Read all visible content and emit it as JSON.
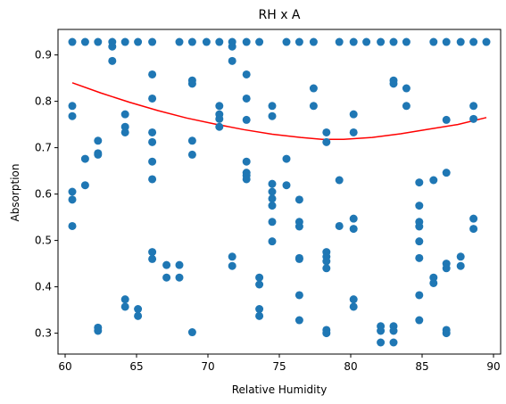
{
  "chart_data": {
    "type": "scatter",
    "title": "RH x A",
    "xlabel": "Relative Humidity",
    "ylabel": "Absorption",
    "xlim": [
      59.5,
      90.5
    ],
    "ylim": [
      0.255,
      0.955
    ],
    "xticks": [
      60,
      65,
      70,
      75,
      80,
      85,
      90
    ],
    "yticks": [
      0.3,
      0.4,
      0.5,
      0.6,
      0.7,
      0.8,
      0.9
    ],
    "grid": false,
    "colors": {
      "points": "#1f77b4",
      "fit": "#ff0000"
    },
    "series": [
      {
        "type": "scatter",
        "points": [
          [
            60.5,
            0.928
          ],
          [
            61.4,
            0.928
          ],
          [
            62.3,
            0.928
          ],
          [
            63.3,
            0.928
          ],
          [
            64.2,
            0.928
          ],
          [
            65.1,
            0.928
          ],
          [
            66.1,
            0.928
          ],
          [
            68.0,
            0.928
          ],
          [
            68.9,
            0.928
          ],
          [
            69.9,
            0.928
          ],
          [
            70.8,
            0.928
          ],
          [
            71.7,
            0.928
          ],
          [
            72.7,
            0.928
          ],
          [
            73.6,
            0.928
          ],
          [
            75.5,
            0.928
          ],
          [
            76.4,
            0.928
          ],
          [
            77.4,
            0.928
          ],
          [
            79.2,
            0.928
          ],
          [
            80.2,
            0.928
          ],
          [
            81.1,
            0.928
          ],
          [
            82.1,
            0.928
          ],
          [
            83.0,
            0.928
          ],
          [
            83.9,
            0.928
          ],
          [
            85.8,
            0.928
          ],
          [
            86.7,
            0.928
          ],
          [
            87.7,
            0.928
          ],
          [
            88.6,
            0.928
          ],
          [
            89.5,
            0.928
          ],
          [
            63.3,
            0.918
          ],
          [
            71.7,
            0.918
          ],
          [
            63.3,
            0.887
          ],
          [
            71.7,
            0.887
          ],
          [
            66.1,
            0.858
          ],
          [
            72.7,
            0.858
          ],
          [
            68.9,
            0.845
          ],
          [
            68.9,
            0.838
          ],
          [
            83.0,
            0.845
          ],
          [
            83.0,
            0.838
          ],
          [
            77.4,
            0.828
          ],
          [
            83.9,
            0.828
          ],
          [
            66.1,
            0.806
          ],
          [
            72.7,
            0.806
          ],
          [
            60.5,
            0.79
          ],
          [
            70.8,
            0.79
          ],
          [
            74.5,
            0.79
          ],
          [
            77.4,
            0.79
          ],
          [
            83.9,
            0.79
          ],
          [
            88.6,
            0.79
          ],
          [
            60.5,
            0.768
          ],
          [
            64.2,
            0.772
          ],
          [
            70.8,
            0.772
          ],
          [
            70.8,
            0.762
          ],
          [
            72.7,
            0.76
          ],
          [
            74.5,
            0.768
          ],
          [
            80.2,
            0.772
          ],
          [
            86.7,
            0.76
          ],
          [
            88.6,
            0.762
          ],
          [
            64.2,
            0.745
          ],
          [
            64.2,
            0.733
          ],
          [
            70.8,
            0.745
          ],
          [
            66.1,
            0.733
          ],
          [
            78.3,
            0.733
          ],
          [
            80.2,
            0.733
          ],
          [
            62.3,
            0.715
          ],
          [
            66.1,
            0.712
          ],
          [
            68.9,
            0.715
          ],
          [
            78.3,
            0.712
          ],
          [
            62.3,
            0.688
          ],
          [
            62.3,
            0.685
          ],
          [
            68.9,
            0.685
          ],
          [
            61.4,
            0.676
          ],
          [
            66.1,
            0.67
          ],
          [
            72.7,
            0.67
          ],
          [
            75.5,
            0.676
          ],
          [
            72.7,
            0.646
          ],
          [
            72.7,
            0.64
          ],
          [
            72.7,
            0.632
          ],
          [
            86.7,
            0.646
          ],
          [
            66.1,
            0.632
          ],
          [
            79.2,
            0.63
          ],
          [
            85.8,
            0.63
          ],
          [
            84.8,
            0.625
          ],
          [
            61.4,
            0.619
          ],
          [
            74.5,
            0.622
          ],
          [
            75.5,
            0.619
          ],
          [
            60.5,
            0.605
          ],
          [
            74.5,
            0.605
          ],
          [
            60.5,
            0.588
          ],
          [
            74.5,
            0.59
          ],
          [
            76.4,
            0.588
          ],
          [
            74.5,
            0.575
          ],
          [
            84.8,
            0.575
          ],
          [
            74.5,
            0.54
          ],
          [
            76.4,
            0.54
          ],
          [
            76.4,
            0.53
          ],
          [
            80.2,
            0.547
          ],
          [
            80.2,
            0.525
          ],
          [
            84.8,
            0.54
          ],
          [
            84.8,
            0.53
          ],
          [
            88.6,
            0.547
          ],
          [
            88.6,
            0.525
          ],
          [
            60.5,
            0.531
          ],
          [
            79.2,
            0.531
          ],
          [
            74.5,
            0.498
          ],
          [
            84.8,
            0.498
          ],
          [
            66.1,
            0.475
          ],
          [
            66.1,
            0.46
          ],
          [
            71.7,
            0.465
          ],
          [
            71.7,
            0.445
          ],
          [
            67.1,
            0.447
          ],
          [
            68.0,
            0.447
          ],
          [
            76.4,
            0.462
          ],
          [
            76.4,
            0.46
          ],
          [
            78.3,
            0.475
          ],
          [
            78.3,
            0.465
          ],
          [
            78.3,
            0.455
          ],
          [
            78.3,
            0.44
          ],
          [
            84.8,
            0.462
          ],
          [
            86.7,
            0.45
          ],
          [
            86.7,
            0.44
          ],
          [
            87.7,
            0.465
          ],
          [
            87.7,
            0.445
          ],
          [
            67.1,
            0.42
          ],
          [
            68.0,
            0.42
          ],
          [
            73.6,
            0.42
          ],
          [
            73.6,
            0.405
          ],
          [
            85.8,
            0.42
          ],
          [
            85.8,
            0.408
          ],
          [
            76.4,
            0.382
          ],
          [
            84.8,
            0.382
          ],
          [
            64.2,
            0.373
          ],
          [
            64.2,
            0.357
          ],
          [
            80.2,
            0.373
          ],
          [
            80.2,
            0.357
          ],
          [
            65.1,
            0.352
          ],
          [
            65.1,
            0.337
          ],
          [
            73.6,
            0.352
          ],
          [
            73.6,
            0.337
          ],
          [
            76.4,
            0.328
          ],
          [
            84.8,
            0.328
          ],
          [
            62.3,
            0.312
          ],
          [
            62.3,
            0.305
          ],
          [
            68.9,
            0.302
          ],
          [
            78.3,
            0.307
          ],
          [
            78.3,
            0.3
          ],
          [
            82.1,
            0.315
          ],
          [
            82.1,
            0.305
          ],
          [
            83.0,
            0.315
          ],
          [
            83.0,
            0.305
          ],
          [
            86.7,
            0.307
          ],
          [
            86.7,
            0.3
          ],
          [
            82.1,
            0.28
          ],
          [
            83.0,
            0.28
          ]
        ]
      },
      {
        "type": "line",
        "x": [
          60.5,
          62.5,
          64.5,
          66.5,
          68.5,
          70.5,
          72.5,
          74.5,
          76.5,
          78.0,
          79.5,
          81.5,
          83.5,
          85.5,
          87.5,
          89.5
        ],
        "y": [
          0.84,
          0.818,
          0.798,
          0.78,
          0.764,
          0.751,
          0.739,
          0.729,
          0.722,
          0.718,
          0.718,
          0.722,
          0.73,
          0.74,
          0.75,
          0.765
        ]
      }
    ]
  }
}
